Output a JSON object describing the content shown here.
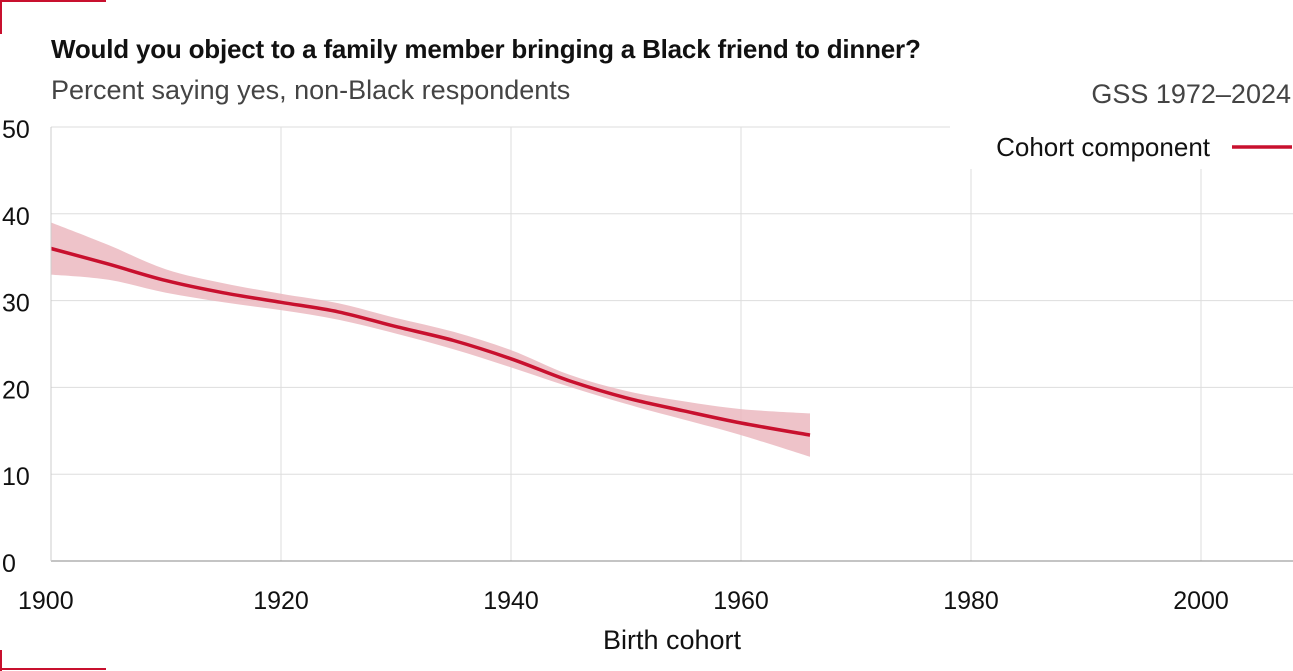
{
  "colors": {
    "accent": "#c8102e",
    "band": "#ebb8c0",
    "grid": "#dddddd",
    "text": "#111111",
    "subtext": "#444444"
  },
  "header": {
    "title": "Would you object to a family member bringing a Black friend to dinner?",
    "subtitle": "Percent saying yes, non-Black respondents",
    "source": "GSS 1972–2024"
  },
  "chart_data": {
    "type": "line",
    "title": "Would you object to a family member bringing a Black friend to dinner?",
    "subtitle": "Percent saying yes, non-Black respondents",
    "xlabel": "Birth cohort",
    "ylabel": "",
    "xlim": [
      1900,
      2008
    ],
    "ylim": [
      0,
      50
    ],
    "x_ticks": [
      1900,
      1920,
      1940,
      1960,
      1980,
      2000
    ],
    "y_ticks": [
      0,
      10,
      20,
      30,
      40,
      50
    ],
    "grid": true,
    "legend_position": "top-right",
    "series": [
      {
        "name": "Cohort component",
        "x": [
          1900,
          1905,
          1910,
          1915,
          1920,
          1925,
          1930,
          1935,
          1940,
          1945,
          1950,
          1955,
          1960,
          1966
        ],
        "y": [
          36.0,
          34.2,
          32.3,
          30.9,
          29.8,
          28.7,
          27.0,
          25.4,
          23.3,
          20.8,
          18.8,
          17.3,
          15.9,
          14.5
        ],
        "lower": [
          33.0,
          32.4,
          30.9,
          29.8,
          28.9,
          27.8,
          26.2,
          24.4,
          22.3,
          20.1,
          18.1,
          16.3,
          14.5,
          12.0
        ],
        "upper": [
          39.0,
          36.4,
          33.6,
          32.0,
          30.8,
          29.7,
          28.0,
          26.4,
          24.3,
          21.5,
          19.6,
          18.4,
          17.5,
          17.0
        ]
      }
    ]
  }
}
